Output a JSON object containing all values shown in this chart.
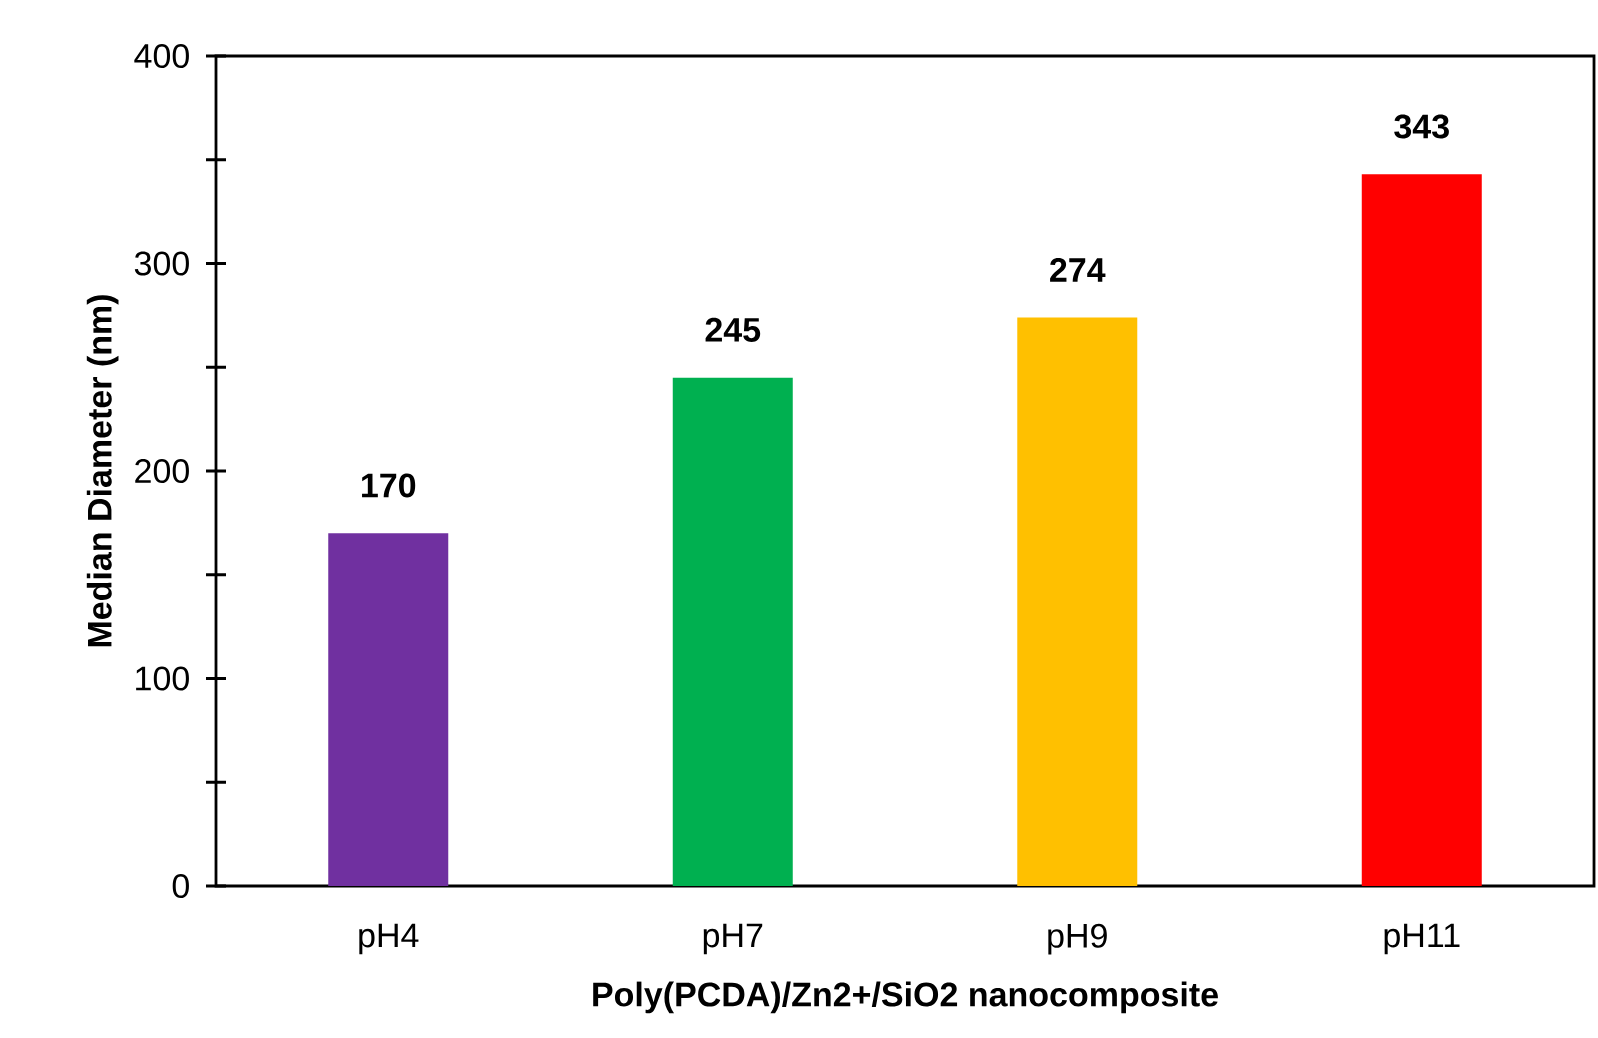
{
  "chart_data": {
    "type": "bar",
    "xlabel": "Poly(PCDA)/Zn2+/SiO2 nanocomposite",
    "ylabel": "Median Diameter (nm)",
    "categories": [
      "pH4",
      "pH7",
      "pH9",
      "pH11"
    ],
    "values": [
      170,
      245,
      274,
      343
    ],
    "colors": [
      "#7030a0",
      "#00b050",
      "#ffc000",
      "#ff0000"
    ],
    "ylim": [
      0,
      400
    ],
    "yticks": [
      0,
      {
        "value": 50,
        "label": null
      },
      100,
      {
        "value": 150,
        "label": null
      },
      200,
      {
        "value": 250,
        "label": null
      },
      300,
      {
        "value": 350,
        "label": null
      },
      400
    ],
    "data_labels": true
  }
}
